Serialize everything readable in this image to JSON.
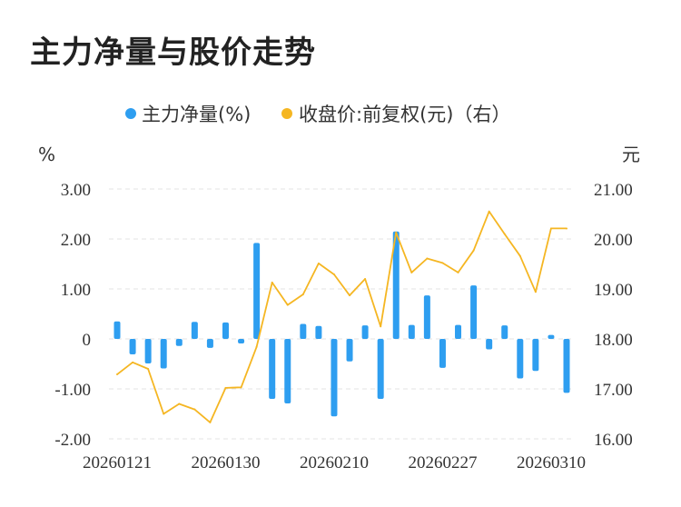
{
  "title": "主力净量与股价走势",
  "chart_data": {
    "type": "bar+line",
    "legend": [
      {
        "label": "主力净量(%)",
        "color": "#2e9ef0"
      },
      {
        "label": "收盘价:前复权(元)（右）",
        "color": "#f5b622"
      }
    ],
    "left_unit": "%",
    "right_unit": "元",
    "left_ticks": [
      "3.00",
      "2.00",
      "1.00",
      "0",
      "-1.00",
      "-2.00"
    ],
    "right_ticks": [
      "21.00",
      "20.00",
      "19.00",
      "18.00",
      "17.00",
      "16.00"
    ],
    "x_ticks": [
      "20260121",
      "20260130",
      "20260210",
      "20260227",
      "20260310"
    ],
    "left_range": [
      -2,
      3
    ],
    "right_range": [
      16,
      21
    ],
    "grid": true,
    "series": [
      {
        "name": "主力净量(%)",
        "type": "bar",
        "values": [
          0.35,
          -0.31,
          -0.49,
          -0.59,
          -0.14,
          0.34,
          -0.18,
          0.33,
          -0.09,
          1.92,
          -1.2,
          -1.29,
          0.3,
          0.26,
          -1.55,
          -0.45,
          0.27,
          -1.2,
          2.15,
          0.28,
          0.87,
          -0.58,
          0.28,
          1.07,
          -0.21,
          0.27,
          -0.79,
          -0.64,
          0.08,
          -1.08
        ]
      },
      {
        "name": "收盘价:前复权(元)（右）",
        "type": "line",
        "values": [
          17.29,
          17.53,
          17.4,
          16.5,
          16.7,
          16.59,
          16.33,
          17.02,
          17.03,
          17.84,
          19.13,
          18.68,
          18.89,
          19.51,
          19.29,
          18.87,
          19.2,
          18.25,
          20.13,
          19.33,
          19.61,
          19.52,
          19.33,
          19.77,
          20.55,
          20.1,
          19.66,
          18.94,
          20.21,
          20.21
        ]
      }
    ]
  }
}
